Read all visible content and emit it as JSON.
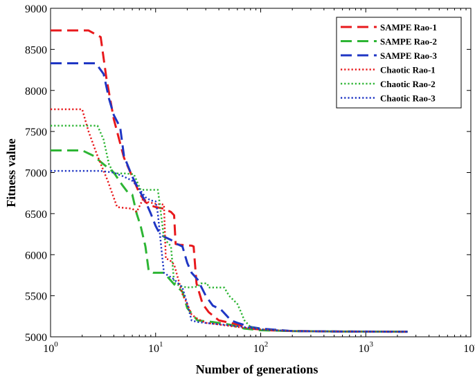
{
  "chart_data": {
    "type": "line",
    "xscale": "log",
    "xlabel": "Number of generations",
    "ylabel": "Fitness value",
    "xlim": [
      1,
      10000
    ],
    "ylim": [
      5000,
      9000
    ],
    "xticks": [
      1,
      10,
      100,
      1000,
      10000
    ],
    "xtick_labels": [
      {
        "base": "10",
        "exp": "0"
      },
      {
        "base": "10",
        "exp": "1"
      },
      {
        "base": "10",
        "exp": "2"
      },
      {
        "base": "10",
        "exp": "3"
      },
      {
        "base": "10",
        "exp": "4"
      }
    ],
    "yticks": [
      5000,
      5500,
      6000,
      6500,
      7000,
      7500,
      8000,
      8500,
      9000
    ],
    "ytick_labels": [
      "5000",
      "5500",
      "6000",
      "6500",
      "7000",
      "7500",
      "8000",
      "8500",
      "9000"
    ],
    "grid": false,
    "legend_position": "top-right",
    "series": [
      {
        "name": "SAMPE Rao-1",
        "color": "#e8191c",
        "style": "dashed",
        "points": [
          [
            1,
            8730
          ],
          [
            2.3,
            8730
          ],
          [
            3,
            8650
          ],
          [
            3.4,
            8150
          ],
          [
            4,
            7650
          ],
          [
            5,
            7180
          ],
          [
            6,
            6950
          ],
          [
            7,
            6750
          ],
          [
            8,
            6640
          ],
          [
            9,
            6600
          ],
          [
            10,
            6580
          ],
          [
            12,
            6560
          ],
          [
            14,
            6520
          ],
          [
            15,
            6480
          ],
          [
            15.5,
            6130
          ],
          [
            17,
            6120
          ],
          [
            22,
            6110
          ],
          [
            23,
            6100
          ],
          [
            24.5,
            5650
          ],
          [
            28,
            5400
          ],
          [
            32,
            5300
          ],
          [
            40,
            5200
          ],
          [
            60,
            5150
          ],
          [
            80,
            5100
          ],
          [
            120,
            5080
          ],
          [
            200,
            5070
          ],
          [
            500,
            5065
          ],
          [
            1000,
            5063
          ],
          [
            2500,
            5062
          ]
        ]
      },
      {
        "name": "SAMPE Rao-2",
        "color": "#2db534",
        "style": "dashed",
        "points": [
          [
            1,
            7270
          ],
          [
            2,
            7270
          ],
          [
            2.6,
            7200
          ],
          [
            3,
            7130
          ],
          [
            4,
            7000
          ],
          [
            4.8,
            6850
          ],
          [
            5.5,
            6750
          ],
          [
            6,
            6730
          ],
          [
            6.6,
            6500
          ],
          [
            7.2,
            6350
          ],
          [
            8,
            6100
          ],
          [
            8.6,
            5800
          ],
          [
            9.5,
            5780
          ],
          [
            11,
            5780
          ],
          [
            12,
            5780
          ],
          [
            15,
            5640
          ],
          [
            18,
            5550
          ],
          [
            20,
            5350
          ],
          [
            25,
            5200
          ],
          [
            35,
            5180
          ],
          [
            50,
            5150
          ],
          [
            70,
            5100
          ],
          [
            100,
            5080
          ],
          [
            200,
            5070
          ],
          [
            500,
            5065
          ],
          [
            2500,
            5062
          ]
        ]
      },
      {
        "name": "SAMPE Rao-3",
        "color": "#1f36c4",
        "style": "dashed",
        "points": [
          [
            1,
            8330
          ],
          [
            2.7,
            8330
          ],
          [
            3.2,
            8200
          ],
          [
            3.6,
            7900
          ],
          [
            4,
            7700
          ],
          [
            4.6,
            7550
          ],
          [
            5,
            7200
          ],
          [
            6,
            6950
          ],
          [
            7,
            6780
          ],
          [
            8,
            6650
          ],
          [
            9,
            6500
          ],
          [
            10,
            6350
          ],
          [
            11,
            6250
          ],
          [
            12,
            6220
          ],
          [
            14,
            6180
          ],
          [
            16,
            6130
          ],
          [
            18,
            6100
          ],
          [
            20,
            5900
          ],
          [
            22,
            5780
          ],
          [
            25,
            5700
          ],
          [
            30,
            5500
          ],
          [
            35,
            5380
          ],
          [
            42,
            5330
          ],
          [
            48,
            5250
          ],
          [
            52,
            5200
          ],
          [
            60,
            5170
          ],
          [
            80,
            5120
          ],
          [
            100,
            5100
          ],
          [
            200,
            5070
          ],
          [
            500,
            5065
          ],
          [
            2500,
            5062
          ]
        ]
      },
      {
        "name": "Chaotic Rao-1",
        "color": "#e8191c",
        "style": "dotted",
        "points": [
          [
            1,
            7770
          ],
          [
            2,
            7770
          ],
          [
            2.3,
            7500
          ],
          [
            2.8,
            7200
          ],
          [
            3.5,
            6900
          ],
          [
            4.3,
            6580
          ],
          [
            5,
            6570
          ],
          [
            6,
            6560
          ],
          [
            6.6,
            6520
          ],
          [
            7.6,
            6680
          ],
          [
            8.5,
            6640
          ],
          [
            10,
            6620
          ],
          [
            12,
            6610
          ],
          [
            12.5,
            5950
          ],
          [
            13.5,
            5940
          ],
          [
            15,
            5880
          ],
          [
            18,
            5520
          ],
          [
            20,
            5400
          ],
          [
            22,
            5270
          ],
          [
            25,
            5220
          ],
          [
            30,
            5170
          ],
          [
            40,
            5150
          ],
          [
            60,
            5120
          ],
          [
            100,
            5090
          ],
          [
            200,
            5070
          ],
          [
            500,
            5065
          ],
          [
            2500,
            5062
          ]
        ]
      },
      {
        "name": "Chaotic Rao-2",
        "color": "#2db534",
        "style": "dotted",
        "points": [
          [
            1,
            7570
          ],
          [
            2.8,
            7570
          ],
          [
            3.2,
            7400
          ],
          [
            3.6,
            7100
          ],
          [
            4,
            6990
          ],
          [
            5,
            6990
          ],
          [
            6.2,
            6980
          ],
          [
            7.2,
            6790
          ],
          [
            9,
            6790
          ],
          [
            10.5,
            6790
          ],
          [
            11,
            6600
          ],
          [
            12,
            6200
          ],
          [
            14,
            6100
          ],
          [
            15,
            5660
          ],
          [
            17,
            5620
          ],
          [
            20,
            5600
          ],
          [
            25,
            5610
          ],
          [
            27,
            5650
          ],
          [
            31,
            5650
          ],
          [
            32,
            5600
          ],
          [
            40,
            5600
          ],
          [
            45,
            5600
          ],
          [
            50,
            5500
          ],
          [
            60,
            5400
          ],
          [
            65,
            5300
          ],
          [
            70,
            5200
          ],
          [
            80,
            5120
          ],
          [
            100,
            5090
          ],
          [
            200,
            5070
          ],
          [
            500,
            5065
          ],
          [
            2500,
            5062
          ]
        ]
      },
      {
        "name": "Chaotic Rao-3",
        "color": "#1f36c4",
        "style": "dotted",
        "points": [
          [
            1,
            7020
          ],
          [
            3,
            7020
          ],
          [
            4,
            7000
          ],
          [
            5,
            6950
          ],
          [
            6,
            6900
          ],
          [
            7,
            6800
          ],
          [
            8,
            6700
          ],
          [
            9,
            6660
          ],
          [
            10,
            6650
          ],
          [
            10.5,
            6500
          ],
          [
            11.5,
            6000
          ],
          [
            12,
            5780
          ],
          [
            13,
            5750
          ],
          [
            15,
            5700
          ],
          [
            18,
            5600
          ],
          [
            20,
            5400
          ],
          [
            22,
            5200
          ],
          [
            25,
            5180
          ],
          [
            35,
            5160
          ],
          [
            60,
            5130
          ],
          [
            100,
            5090
          ],
          [
            200,
            5070
          ],
          [
            500,
            5065
          ],
          [
            2500,
            5062
          ]
        ]
      }
    ]
  }
}
